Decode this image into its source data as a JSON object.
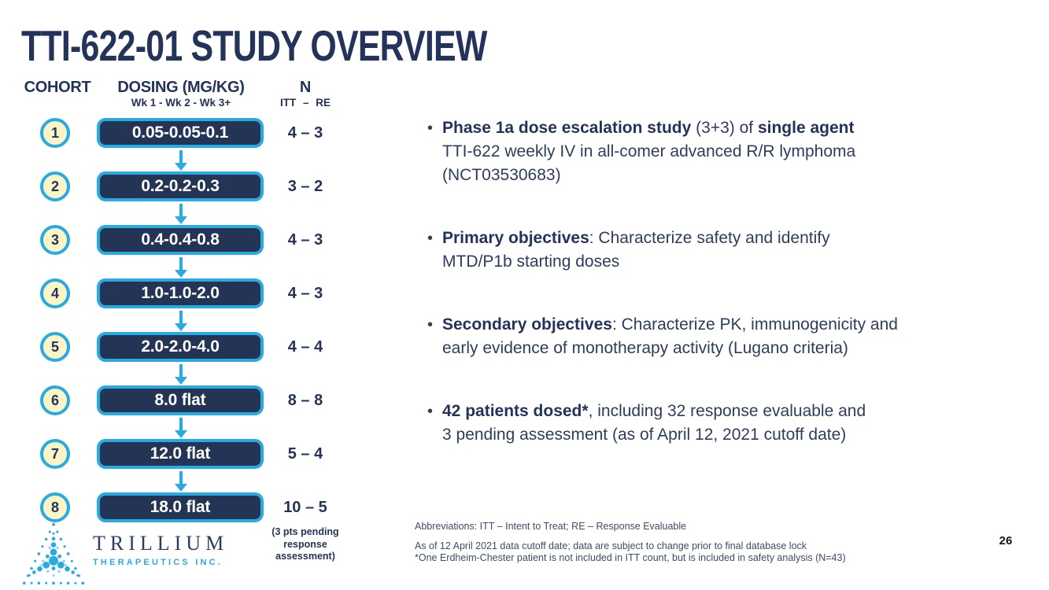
{
  "slide": {
    "title": "TTI-622-01 STUDY OVERVIEW",
    "page_number": "26"
  },
  "colors": {
    "cyan": "#29ABE2",
    "navy": "#24335A",
    "box_navy": "#243454",
    "circle_cream": "#FAF4C6",
    "text_navy": "#2E3D5C",
    "footnote": "#3E4C66"
  },
  "cohort_table": {
    "headers": {
      "cohort": "COHORT",
      "dosing": "DOSING (MG/KG)",
      "dosing_sub": "Wk 1 - Wk 2 - Wk 3+",
      "n": "N",
      "n_sub": "ITT – RE"
    },
    "rows": [
      {
        "cohort": "1",
        "dose": "0.05-0.05-0.1",
        "n": "4 – 3"
      },
      {
        "cohort": "2",
        "dose": "0.2-0.2-0.3",
        "n": "3 – 2"
      },
      {
        "cohort": "3",
        "dose": "0.4-0.4-0.8",
        "n": "4 – 3"
      },
      {
        "cohort": "4",
        "dose": "1.0-1.0-2.0",
        "n": "4 – 3"
      },
      {
        "cohort": "5",
        "dose": "2.0-2.0-4.0",
        "n": "4 – 4"
      },
      {
        "cohort": "6",
        "dose": "8.0 flat",
        "n": "8 – 8"
      },
      {
        "cohort": "7",
        "dose": "12.0 flat",
        "n": "5 – 4"
      },
      {
        "cohort": "8",
        "dose": "18.0 flat",
        "n": "10 – 5",
        "note": "(3 pts pending response assessment)"
      }
    ]
  },
  "bullets": [
    {
      "segments": [
        {
          "t": "Phase 1a dose escalation study",
          "b": true
        },
        {
          "t": " (3+3) of ",
          "b": false
        },
        {
          "t": "single agent",
          "b": true
        },
        {
          "br": true
        },
        {
          "t": "TTI-622 weekly IV in all-comer advanced R/R lymphoma",
          "b": false
        },
        {
          "br": true
        },
        {
          "t": "(NCT03530683)",
          "b": false
        }
      ]
    },
    {
      "segments": [
        {
          "t": "Primary objectives",
          "b": true
        },
        {
          "t": ": Characterize safety and identify",
          "b": false
        },
        {
          "br": true
        },
        {
          "t": "MTD/P1b starting doses",
          "b": false
        }
      ]
    },
    {
      "segments": [
        {
          "t": "Secondary objectives",
          "b": true
        },
        {
          "t": ": Characterize PK, immunogenicity and",
          "b": false
        },
        {
          "br": true
        },
        {
          "t": "early evidence of monotherapy activity (Lugano criteria)",
          "b": false
        }
      ]
    },
    {
      "segments": [
        {
          "t": "42 patients dosed*",
          "b": true
        },
        {
          "t": ", including 32 response evaluable and",
          "b": false
        },
        {
          "br": true
        },
        {
          "t": "3 pending assessment (as of April 12, 2021 cutoff date)",
          "b": false
        }
      ]
    }
  ],
  "footnotes": [
    "Abbreviations: ITT – Intent to Treat; RE – Response Evaluable",
    "As of 12 April 2021 data cutoff date; data are subject to change prior to final database lock",
    "*One Erdheim-Chester patient is not included in ITT count, but is included in safety analysis (N=43)"
  ],
  "logo": {
    "name": "TRILLIUM",
    "sub": "THERAPEUTICS INC."
  }
}
